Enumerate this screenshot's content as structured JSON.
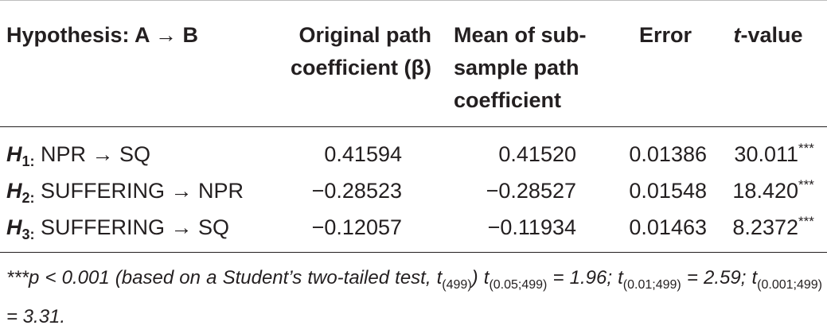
{
  "table": {
    "header": {
      "col1": "Hypothesis: A → B",
      "col2_line1": "Original path",
      "col2_line2": "coefficient (β)",
      "col3_line1": "Mean of sub-",
      "col3_line2": "sample path",
      "col3_line3": "coefficient",
      "col4": "Error",
      "col5_italic": "t",
      "col5_rest": "-value"
    },
    "rows": [
      {
        "h": "H",
        "sub": "1:",
        "label": " NPR → SQ",
        "beta": "0.41594",
        "mean": "0.41520",
        "error": "0.01386",
        "t": "30.011",
        "stars": "***"
      },
      {
        "h": "H",
        "sub": "2:",
        "label": " SUFFERING → NPR",
        "beta": "−0.28523",
        "mean": "−0.28527",
        "error": "0.01548",
        "t": "18.420",
        "stars": "***"
      },
      {
        "h": "H",
        "sub": "3:",
        "label": " SUFFERING → SQ",
        "beta": "−0.12057",
        "mean": "−0.11934",
        "error": "0.01463",
        "t": "8.2372",
        "stars": "***"
      }
    ],
    "note": {
      "p1": "***p < 0.001 (based on a Student’s two-tailed test, t",
      "s1": "(499)",
      "p2": ") t",
      "s2": "(0.05;499)",
      "p3": " = 1.96; t",
      "s3": "(0.01;499)",
      "p4": " = 2.59; t",
      "s4": "(0.001;499)",
      "p5": " = 3.31."
    }
  }
}
